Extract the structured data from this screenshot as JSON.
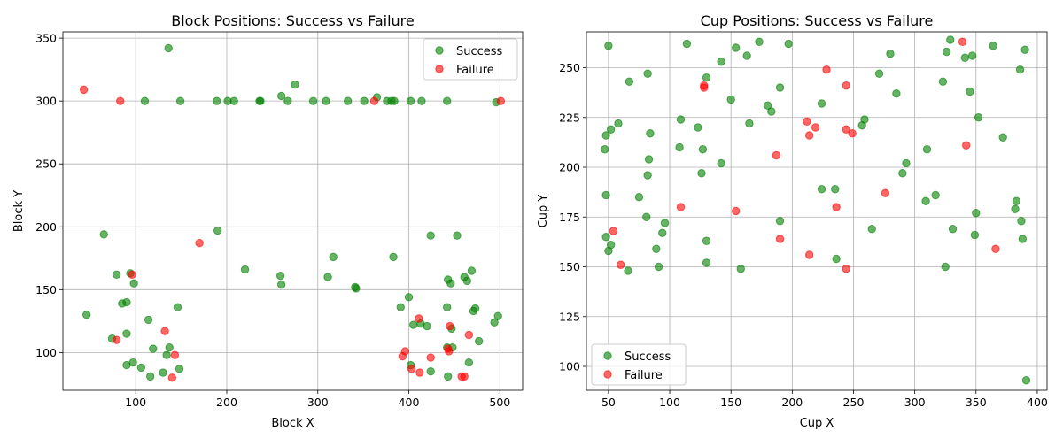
{
  "chart_data": [
    {
      "type": "scatter",
      "title": "Block Positions: Success vs Failure",
      "xlabel": "Block X",
      "ylabel": "Block Y",
      "xlim": [
        20,
        525
      ],
      "ylim": [
        70,
        355
      ],
      "xticks": [
        100,
        200,
        300,
        400,
        500
      ],
      "yticks": [
        100,
        150,
        200,
        250,
        300,
        350
      ],
      "grid": true,
      "legend_position": "upper right",
      "series": [
        {
          "name": "Success",
          "color": "#008000",
          "points": [
            [
              136,
              342
            ],
            [
              110,
              300
            ],
            [
              149,
              300
            ],
            [
              189,
              300
            ],
            [
              201,
              300
            ],
            [
              208,
              300
            ],
            [
              236,
              300
            ],
            [
              237,
              300
            ],
            [
              260,
              304
            ],
            [
              267,
              300
            ],
            [
              275,
              313
            ],
            [
              295,
              300
            ],
            [
              309,
              300
            ],
            [
              333,
              300
            ],
            [
              351,
              300
            ],
            [
              365,
              303
            ],
            [
              376,
              300
            ],
            [
              381,
              300
            ],
            [
              384,
              300
            ],
            [
              402,
              300
            ],
            [
              414,
              300
            ],
            [
              442,
              300
            ],
            [
              496,
              299
            ],
            [
              65,
              194
            ],
            [
              190,
              197
            ],
            [
              424,
              193
            ],
            [
              453,
              193
            ],
            [
              46,
              130
            ],
            [
              79,
              162
            ],
            [
              85,
              139
            ],
            [
              90,
              140
            ],
            [
              94,
              163
            ],
            [
              98,
              155
            ],
            [
              114,
              126
            ],
            [
              146,
              136
            ],
            [
              220,
              166
            ],
            [
              259,
              161
            ],
            [
              260,
              154
            ],
            [
              311,
              160
            ],
            [
              317,
              176
            ],
            [
              341,
              152
            ],
            [
              342,
              151
            ],
            [
              383,
              176
            ],
            [
              391,
              136
            ],
            [
              400,
              144
            ],
            [
              405,
              122
            ],
            [
              413,
              123
            ],
            [
              420,
              121
            ],
            [
              442,
              136
            ],
            [
              443,
              158
            ],
            [
              446,
              155
            ],
            [
              447,
              119
            ],
            [
              461,
              160
            ],
            [
              464,
              157
            ],
            [
              469,
              165
            ],
            [
              471,
              133
            ],
            [
              473,
              135
            ],
            [
              477,
              109
            ],
            [
              494,
              124
            ],
            [
              498,
              129
            ],
            [
              74,
              111
            ],
            [
              90,
              115
            ],
            [
              90,
              90
            ],
            [
              97,
              92
            ],
            [
              106,
              88
            ],
            [
              116,
              81
            ],
            [
              119,
              103
            ],
            [
              130,
              84
            ],
            [
              134,
              98
            ],
            [
              137,
              104
            ],
            [
              148,
              87
            ],
            [
              402,
              90
            ],
            [
              424,
              85
            ],
            [
              442,
              104
            ],
            [
              443,
              81
            ],
            [
              448,
              104
            ],
            [
              466,
              92
            ]
          ]
        },
        {
          "name": "Failure",
          "color": "#ff0000",
          "points": [
            [
              43,
              309
            ],
            [
              83,
              300
            ],
            [
              362,
              300
            ],
            [
              501,
              300
            ],
            [
              170,
              187
            ],
            [
              96,
              162
            ],
            [
              79,
              110
            ],
            [
              132,
              117
            ],
            [
              140,
              80
            ],
            [
              143,
              98
            ],
            [
              393,
              97
            ],
            [
              396,
              101
            ],
            [
              403,
              87
            ],
            [
              411,
              127
            ],
            [
              412,
              84
            ],
            [
              424,
              96
            ],
            [
              443,
              103
            ],
            [
              444,
              101
            ],
            [
              445,
              121
            ],
            [
              458,
              81
            ],
            [
              461,
              81
            ],
            [
              466,
              114
            ]
          ]
        }
      ]
    },
    {
      "type": "scatter",
      "title": "Cup Positions: Success vs Failure",
      "xlabel": "Cup X",
      "ylabel": "Cup Y",
      "xlim": [
        32,
        408
      ],
      "ylim": [
        88,
        268
      ],
      "xticks": [
        50,
        100,
        150,
        200,
        250,
        300,
        350,
        400
      ],
      "yticks": [
        100,
        125,
        150,
        175,
        200,
        225,
        250
      ],
      "grid": true,
      "legend_position": "lower left",
      "series": [
        {
          "name": "Success",
          "color": "#008000",
          "points": [
            [
              50,
              261
            ],
            [
              114,
              262
            ],
            [
              154,
              260
            ],
            [
              173,
              263
            ],
            [
              197,
              262
            ],
            [
              163,
              256
            ],
            [
              142,
              253
            ],
            [
              82,
              247
            ],
            [
              130,
              245
            ],
            [
              67,
              243
            ],
            [
              150,
              234
            ],
            [
              280,
              257
            ],
            [
              271,
              247
            ],
            [
              285,
              237
            ],
            [
              323,
              243
            ],
            [
              326,
              258
            ],
            [
              329,
              264
            ],
            [
              341,
              255
            ],
            [
              347,
              256
            ],
            [
              345,
              238
            ],
            [
              364,
              261
            ],
            [
              386,
              249
            ],
            [
              390,
              259
            ],
            [
              48,
              216
            ],
            [
              47,
              209
            ],
            [
              52,
              219
            ],
            [
              58,
              222
            ],
            [
              84,
              217
            ],
            [
              109,
              224
            ],
            [
              123,
              220
            ],
            [
              127,
              209
            ],
            [
              108,
              210
            ],
            [
              83,
              204
            ],
            [
              82,
              196
            ],
            [
              126,
              197
            ],
            [
              142,
              202
            ],
            [
              165,
              222
            ],
            [
              180,
              231
            ],
            [
              183,
              228
            ],
            [
              190,
              240
            ],
            [
              224,
              232
            ],
            [
              257,
              221
            ],
            [
              259,
              224
            ],
            [
              290,
              197
            ],
            [
              293,
              202
            ],
            [
              310,
              209
            ],
            [
              352,
              225
            ],
            [
              372,
              215
            ],
            [
              48,
              186
            ],
            [
              75,
              185
            ],
            [
              81,
              175
            ],
            [
              96,
              172
            ],
            [
              94,
              167
            ],
            [
              89,
              159
            ],
            [
              91,
              150
            ],
            [
              66,
              148
            ],
            [
              48,
              165
            ],
            [
              50,
              158
            ],
            [
              52,
              161
            ],
            [
              130,
              163
            ],
            [
              130,
              152
            ],
            [
              158,
              149
            ],
            [
              190,
              173
            ],
            [
              224,
              189
            ],
            [
              235,
              189
            ],
            [
              236,
              154
            ],
            [
              265,
              169
            ],
            [
              309,
              183
            ],
            [
              317,
              186
            ],
            [
              325,
              150
            ],
            [
              331,
              169
            ],
            [
              349,
              166
            ],
            [
              350,
              177
            ],
            [
              382,
              179
            ],
            [
              383,
              183
            ],
            [
              387,
              173
            ],
            [
              388,
              164
            ],
            [
              391,
              93
            ]
          ]
        },
        {
          "name": "Failure",
          "color": "#ff0000",
          "points": [
            [
              128,
              240
            ],
            [
              128,
              241
            ],
            [
              228,
              249
            ],
            [
              244,
              241
            ],
            [
              212,
              223
            ],
            [
              219,
              220
            ],
            [
              214,
              216
            ],
            [
              244,
              219
            ],
            [
              249,
              217
            ],
            [
              187,
              206
            ],
            [
              339,
              263
            ],
            [
              342,
              211
            ],
            [
              109,
              180
            ],
            [
              154,
              178
            ],
            [
              54,
              168
            ],
            [
              60,
              151
            ],
            [
              190,
              164
            ],
            [
              214,
              156
            ],
            [
              236,
              180
            ],
            [
              244,
              149
            ],
            [
              276,
              187
            ],
            [
              366,
              159
            ]
          ]
        }
      ]
    }
  ]
}
